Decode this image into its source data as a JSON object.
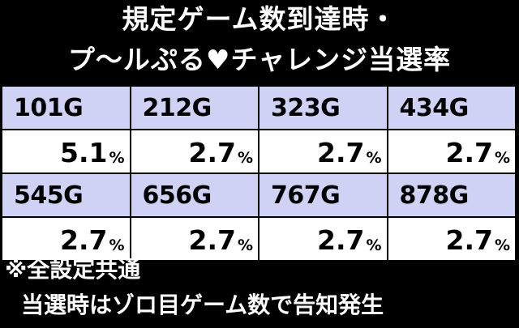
{
  "title": {
    "line1": "規定ゲーム数到達時・",
    "line2_a": "プ〜ルぷる",
    "heart_glyph": "♥",
    "line2_b": "チャレンジ当選率"
  },
  "table": {
    "rows": [
      {
        "games": [
          "101G",
          "212G",
          "323G",
          "434G"
        ],
        "rates": [
          "5.1",
          "2.7",
          "2.7",
          "2.7"
        ]
      },
      {
        "games": [
          "545G",
          "656G",
          "767G",
          "878G"
        ],
        "rates": [
          "2.7",
          "2.7",
          "2.7",
          "2.7"
        ]
      }
    ],
    "percent_sign": "%"
  },
  "notes": {
    "line1": "※全設定共通",
    "line2": "当選時はゾロ目ゲーム数で告知発生"
  },
  "colors": {
    "header_cell": "#cfd2f4",
    "value_cell": "#ffffff",
    "background": "#000000"
  }
}
